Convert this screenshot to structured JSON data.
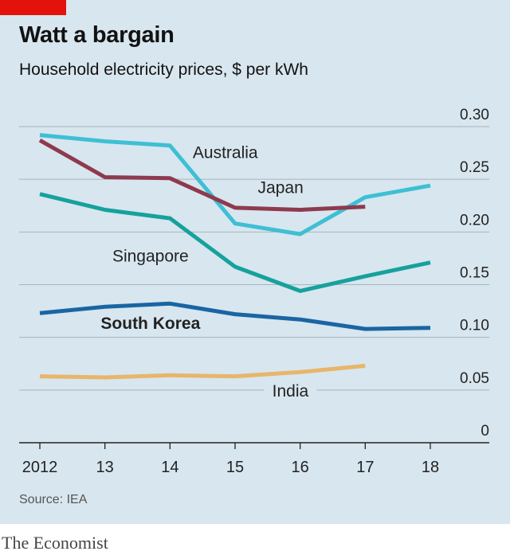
{
  "header": {
    "title": "Watt a bargain",
    "subtitle": "Household electricity prices, $ per kWh"
  },
  "footer": {
    "source": "Source: IEA",
    "publisher": "The Economist"
  },
  "colors": {
    "background": "#d8e6ef",
    "accent_tag": "#e3120b",
    "Australia": "#3ebfd4",
    "Japan": "#8e3a4e",
    "Singapore": "#16a19c",
    "South Korea": "#1a65a3",
    "India": "#e8b56a"
  },
  "chart_data": {
    "type": "line",
    "title": "Watt a bargain",
    "subtitle": "Household electricity prices, $ per kWh",
    "x": [
      2012,
      2013,
      2014,
      2015,
      2016,
      2017,
      2018
    ],
    "x_tick_labels": [
      "2012",
      "13",
      "14",
      "15",
      "16",
      "17",
      "18"
    ],
    "ylim": [
      0,
      0.3
    ],
    "y_ticks": [
      0,
      0.05,
      0.1,
      0.15,
      0.2,
      0.25,
      0.3
    ],
    "y_tick_labels": [
      "0",
      "0.05",
      "0.10",
      "0.15",
      "0.20",
      "0.25",
      "0.30"
    ],
    "y_axis_side": "right",
    "grid": true,
    "legend": "inline labels",
    "series": [
      {
        "name": "Australia",
        "color": "#3ebfd4",
        "label_bold": false,
        "x": [
          2012,
          2013,
          2014,
          2015,
          2016,
          2017,
          2018
        ],
        "values": [
          0.292,
          0.286,
          0.282,
          0.208,
          0.198,
          0.233,
          0.244
        ]
      },
      {
        "name": "Japan",
        "color": "#8e3a4e",
        "label_bold": false,
        "x": [
          2012,
          2013,
          2014,
          2015,
          2016,
          2017
        ],
        "values": [
          0.287,
          0.252,
          0.251,
          0.223,
          0.221,
          0.224
        ]
      },
      {
        "name": "Singapore",
        "color": "#16a19c",
        "label_bold": false,
        "x": [
          2012,
          2013,
          2014,
          2015,
          2016,
          2017,
          2018
        ],
        "values": [
          0.236,
          0.221,
          0.213,
          0.167,
          0.144,
          0.158,
          0.171
        ]
      },
      {
        "name": "South Korea",
        "color": "#1a65a3",
        "label_bold": true,
        "x": [
          2012,
          2013,
          2014,
          2015,
          2016,
          2017,
          2018
        ],
        "values": [
          0.123,
          0.129,
          0.132,
          0.122,
          0.117,
          0.108,
          0.109
        ]
      },
      {
        "name": "India",
        "color": "#e8b56a",
        "label_bold": false,
        "x": [
          2012,
          2013,
          2014,
          2015,
          2016,
          2017
        ],
        "values": [
          0.063,
          0.062,
          0.064,
          0.063,
          0.067,
          0.073
        ]
      }
    ]
  }
}
